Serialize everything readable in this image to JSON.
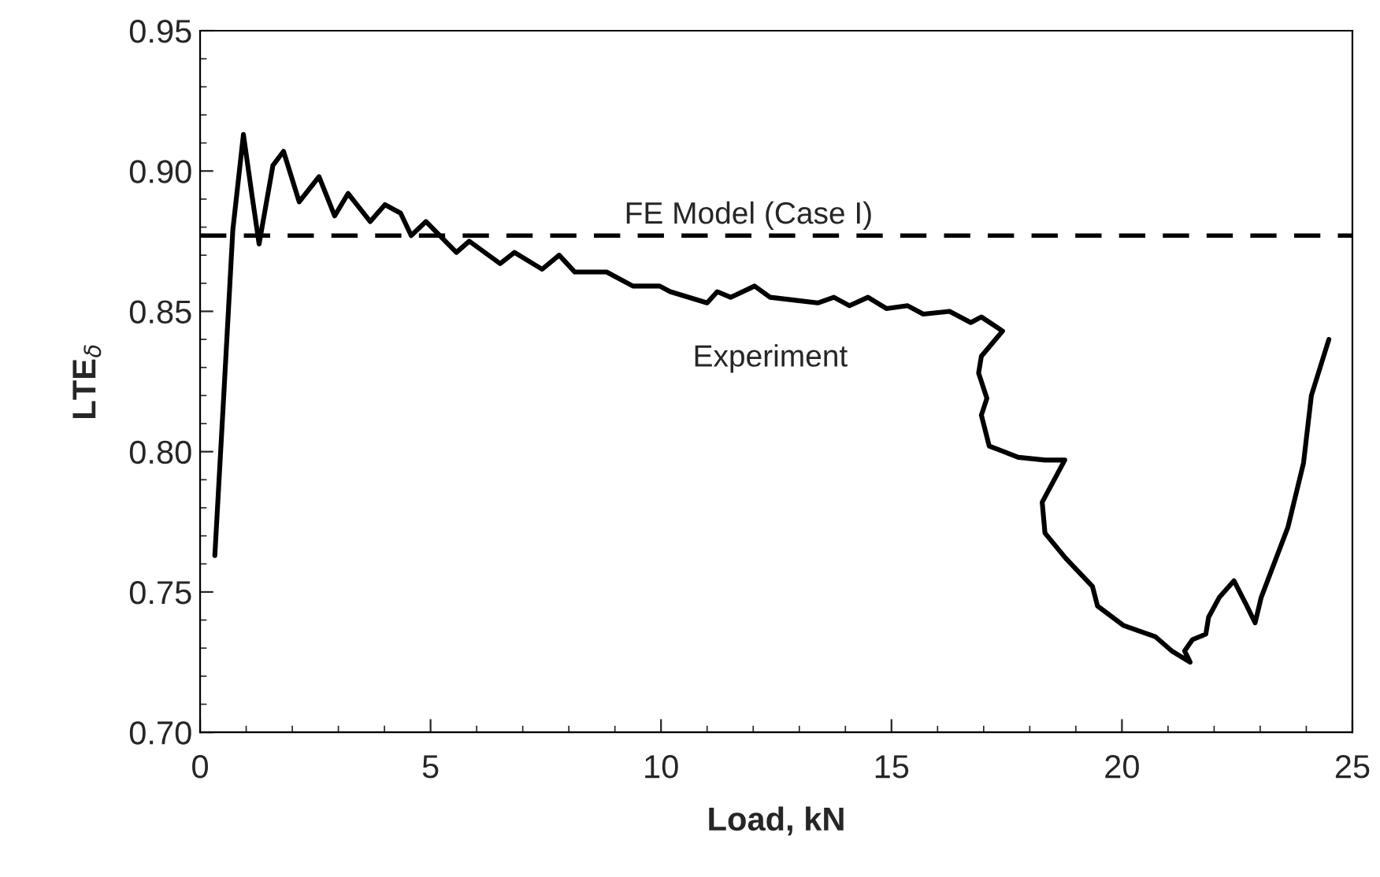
{
  "chart_data": {
    "type": "line",
    "xlabel": "Load, kN",
    "ylabel": "LTE$_{δ}$",
    "xlim": [
      0,
      25
    ],
    "xticks": [
      0,
      5,
      10,
      15,
      20,
      25
    ],
    "ylim": [
      0.7,
      0.95
    ],
    "yticks": [
      {
        "value": 0.7,
        "label": "0.70"
      },
      {
        "value": 0.75,
        "label": "0.75"
      },
      {
        "value": 0.8,
        "label": "0.80"
      },
      {
        "value": 0.85,
        "label": "0.85"
      },
      {
        "value": 0.9,
        "label": "0.90"
      },
      {
        "value": 0.95,
        "label": "0.95"
      }
    ],
    "grid": false,
    "legend": false,
    "marker": "none",
    "ref_lines": [
      {
        "axis": "y",
        "value": 0.877,
        "label": "FE Model (Case I)",
        "color": "#000000",
        "line_style": "dashed"
      }
    ],
    "series": [
      {
        "name": "Experiment",
        "color": "#000000",
        "line_style": "solid",
        "x": [
          0.32,
          0.52,
          0.71,
          0.94,
          1.12,
          1.28,
          1.58,
          1.81,
          2.15,
          2.58,
          2.92,
          3.21,
          3.69,
          4.01,
          4.35,
          4.58,
          4.9,
          5.56,
          5.84,
          6.51,
          6.82,
          7.42,
          7.79,
          8.13,
          8.82,
          9.39,
          9.97,
          10.2,
          11.0,
          11.22,
          11.51,
          12.03,
          12.37,
          13.4,
          13.75,
          14.09,
          14.49,
          14.89,
          15.35,
          15.69,
          16.26,
          16.72,
          16.95,
          17.41,
          16.95,
          16.89,
          17.07,
          16.95,
          17.12,
          17.75,
          18.33,
          18.76,
          18.27,
          18.33,
          18.78,
          19.36,
          19.47,
          20.04,
          20.73,
          21.08,
          21.48,
          21.36,
          21.53,
          21.82,
          21.88,
          22.11,
          22.43,
          22.68,
          22.89,
          23.02,
          23.6,
          23.94,
          24.11,
          24.49
        ],
        "values": [
          0.763,
          0.822,
          0.879,
          0.913,
          0.892,
          0.874,
          0.902,
          0.907,
          0.889,
          0.898,
          0.884,
          0.892,
          0.882,
          0.888,
          0.885,
          0.877,
          0.882,
          0.871,
          0.875,
          0.867,
          0.871,
          0.865,
          0.87,
          0.864,
          0.864,
          0.859,
          0.859,
          0.857,
          0.853,
          0.857,
          0.855,
          0.859,
          0.855,
          0.853,
          0.855,
          0.852,
          0.855,
          0.851,
          0.852,
          0.849,
          0.85,
          0.846,
          0.848,
          0.843,
          0.834,
          0.828,
          0.819,
          0.813,
          0.802,
          0.798,
          0.797,
          0.797,
          0.782,
          0.771,
          0.762,
          0.752,
          0.745,
          0.738,
          0.734,
          0.729,
          0.725,
          0.729,
          0.733,
          0.735,
          0.741,
          0.748,
          0.754,
          0.746,
          0.739,
          0.748,
          0.773,
          0.796,
          0.82,
          0.84
        ]
      }
    ]
  }
}
